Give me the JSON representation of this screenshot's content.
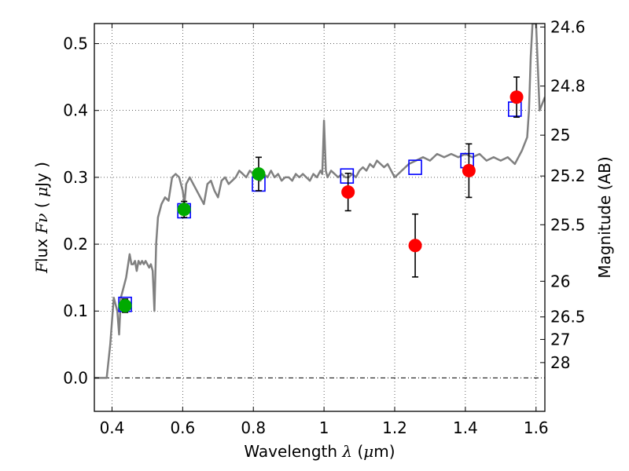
{
  "chart_data": {
    "type": "scatter",
    "title": "",
    "xlabel": "Wavelength  λ (μm)",
    "ylabel": "Flux  Fν  ( μJy )",
    "y2label": "Magnitude (AB)",
    "xlim": [
      0.35,
      1.625
    ],
    "ylim": [
      -0.05,
      0.53
    ],
    "grid": true,
    "x_ticks": [
      {
        "value": 0.4,
        "label": "0.4"
      },
      {
        "value": 0.6,
        "label": "0.6"
      },
      {
        "value": 0.8,
        "label": "0.8"
      },
      {
        "value": 1.0,
        "label": "1"
      },
      {
        "value": 1.2,
        "label": "1.2"
      },
      {
        "value": 1.4,
        "label": "1.4"
      },
      {
        "value": 1.6,
        "label": "1.6"
      }
    ],
    "y_ticks": [
      {
        "value": 0.0,
        "label": "0.0"
      },
      {
        "value": 0.1,
        "label": "0.1"
      },
      {
        "value": 0.2,
        "label": "0.2"
      },
      {
        "value": 0.3,
        "label": "0.3"
      },
      {
        "value": 0.4,
        "label": "0.4"
      },
      {
        "value": 0.5,
        "label": "0.5"
      }
    ],
    "y2_ticks": [
      {
        "value": 24.6,
        "label": "24.6"
      },
      {
        "value": 24.8,
        "label": "24.8"
      },
      {
        "value": 25,
        "label": "25"
      },
      {
        "value": 25.2,
        "label": "25.2"
      },
      {
        "value": 25.5,
        "label": "25.5"
      },
      {
        "value": 26,
        "label": "26"
      },
      {
        "value": 26.5,
        "label": "26.5"
      },
      {
        "value": 27,
        "label": "27"
      },
      {
        "value": 28,
        "label": "28"
      }
    ],
    "series": [
      {
        "kind": "line",
        "color": "#808080",
        "x": [
          0.35,
          0.385,
          0.395,
          0.405,
          0.415,
          0.42,
          0.425,
          0.43,
          0.44,
          0.45,
          0.455,
          0.46,
          0.465,
          0.47,
          0.475,
          0.48,
          0.485,
          0.49,
          0.495,
          0.5,
          0.505,
          0.51,
          0.515,
          0.52,
          0.525,
          0.53,
          0.54,
          0.55,
          0.56,
          0.57,
          0.58,
          0.59,
          0.6,
          0.605,
          0.61,
          0.62,
          0.63,
          0.64,
          0.65,
          0.66,
          0.67,
          0.68,
          0.69,
          0.7,
          0.71,
          0.72,
          0.73,
          0.74,
          0.75,
          0.76,
          0.77,
          0.78,
          0.79,
          0.8,
          0.81,
          0.82,
          0.83,
          0.84,
          0.85,
          0.86,
          0.87,
          0.88,
          0.89,
          0.9,
          0.91,
          0.92,
          0.93,
          0.94,
          0.95,
          0.96,
          0.97,
          0.98,
          0.99,
          0.995,
          1.0,
          1.005,
          1.01,
          1.02,
          1.03,
          1.04,
          1.05,
          1.06,
          1.07,
          1.08,
          1.09,
          1.1,
          1.11,
          1.12,
          1.13,
          1.14,
          1.15,
          1.16,
          1.17,
          1.18,
          1.19,
          1.2,
          1.22,
          1.24,
          1.26,
          1.28,
          1.3,
          1.32,
          1.34,
          1.36,
          1.38,
          1.4,
          1.42,
          1.44,
          1.46,
          1.48,
          1.5,
          1.52,
          1.54,
          1.56,
          1.575,
          1.58,
          1.585,
          1.59,
          1.6,
          1.61,
          1.625
        ],
        "y": [
          0.0,
          0.0,
          0.05,
          0.12,
          0.1,
          0.065,
          0.12,
          0.13,
          0.15,
          0.185,
          0.17,
          0.17,
          0.175,
          0.16,
          0.175,
          0.17,
          0.175,
          0.17,
          0.175,
          0.17,
          0.165,
          0.17,
          0.16,
          0.1,
          0.2,
          0.24,
          0.26,
          0.27,
          0.265,
          0.3,
          0.305,
          0.3,
          0.28,
          0.26,
          0.29,
          0.3,
          0.29,
          0.28,
          0.27,
          0.26,
          0.29,
          0.295,
          0.28,
          0.27,
          0.295,
          0.3,
          0.29,
          0.295,
          0.3,
          0.31,
          0.305,
          0.3,
          0.31,
          0.305,
          0.3,
          0.295,
          0.305,
          0.3,
          0.31,
          0.3,
          0.305,
          0.295,
          0.3,
          0.3,
          0.295,
          0.305,
          0.3,
          0.305,
          0.3,
          0.295,
          0.305,
          0.3,
          0.31,
          0.305,
          0.385,
          0.31,
          0.3,
          0.31,
          0.305,
          0.3,
          0.305,
          0.3,
          0.3,
          0.305,
          0.3,
          0.31,
          0.315,
          0.31,
          0.32,
          0.315,
          0.325,
          0.32,
          0.315,
          0.32,
          0.31,
          0.3,
          0.31,
          0.32,
          0.325,
          0.33,
          0.325,
          0.335,
          0.33,
          0.335,
          0.33,
          0.335,
          0.33,
          0.335,
          0.325,
          0.33,
          0.325,
          0.33,
          0.32,
          0.34,
          0.36,
          0.4,
          0.48,
          0.53,
          0.53,
          0.4,
          0.42
        ]
      },
      {
        "kind": "squares",
        "color": "#0000ff",
        "x": [
          0.437,
          0.604,
          0.815,
          1.065,
          1.258,
          1.405,
          1.54
        ],
        "y": [
          0.11,
          0.25,
          0.29,
          0.302,
          0.315,
          0.325,
          0.402
        ]
      },
      {
        "kind": "points",
        "color": "#00aa00",
        "x": [
          0.437,
          0.604,
          0.815
        ],
        "y": [
          0.108,
          0.252,
          0.305
        ],
        "yerr": [
          0.01,
          0.012,
          0.025
        ]
      },
      {
        "kind": "points",
        "color": "#ff0000",
        "x": [
          1.068,
          1.258,
          1.41,
          1.545
        ],
        "y": [
          0.278,
          0.198,
          0.31,
          0.42
        ],
        "yerr": [
          0.028,
          0.047,
          0.04,
          0.03
        ]
      }
    ]
  }
}
